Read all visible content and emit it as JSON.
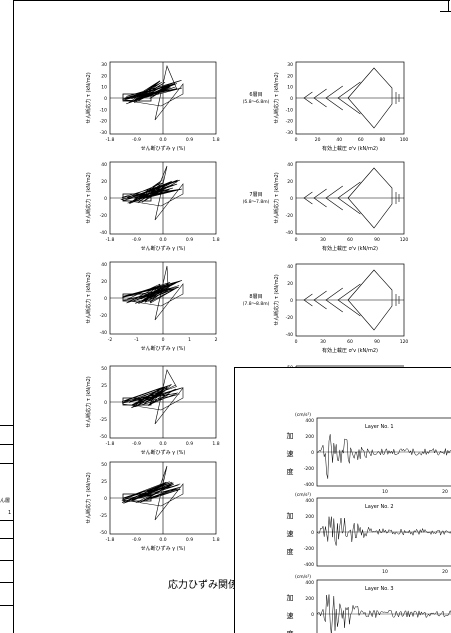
{
  "page": {
    "caption": "応力ひずみ関係",
    "side_tabs": [
      "ん層",
      "1"
    ]
  },
  "plots": {
    "left": {
      "ylabel": "せん断応力 τ (kN/m2)",
      "xlabel": "せん断ひずみ γ (%)",
      "panels": [
        {
          "yticks": [
            "30",
            "20",
            "10",
            "0",
            "-10",
            "-20",
            "-30"
          ],
          "xticks": [
            "-1.8",
            "-0.9",
            "0.0",
            "0.9",
            "1.8"
          ]
        },
        {
          "yticks": [
            "40",
            "20",
            "0",
            "-20",
            "-40"
          ],
          "xticks": [
            "-1.8",
            "-0.9",
            "0.0",
            "0.9",
            "1.8"
          ]
        },
        {
          "yticks": [
            "40",
            "20",
            "0",
            "-20",
            "-40"
          ],
          "xticks": [
            "-2",
            "-1",
            "0",
            "1",
            "2"
          ]
        },
        {
          "yticks": [
            "50",
            "25",
            "0",
            "-25",
            "-50"
          ],
          "xticks": [
            "-1.8",
            "-0.9",
            "0.0",
            "0.9",
            "1.8"
          ]
        },
        {
          "yticks": [
            "50",
            "25",
            "0",
            "-25",
            "-50"
          ],
          "xticks": [
            "-1.8",
            "-0.9",
            "0.0",
            "0.9",
            "1.8"
          ]
        }
      ]
    },
    "right": {
      "ylabel": "せん断応力 τ (kN/m2)",
      "xlabel": "有効上載圧 σ'v (kN/m2)",
      "panels": [
        {
          "layer": "6層目",
          "depth": "(5.8〜6.8m)",
          "yticks": [
            "30",
            "20",
            "10",
            "0",
            "-10",
            "-20",
            "-30"
          ],
          "xticks": [
            "0",
            "20",
            "40",
            "60",
            "80",
            "100"
          ]
        },
        {
          "layer": "7層目",
          "depth": "(6.8〜7.8m)",
          "yticks": [
            "40",
            "20",
            "0",
            "-20",
            "-40"
          ],
          "xticks": [
            "0",
            "30",
            "60",
            "90",
            "120"
          ]
        },
        {
          "layer": "8層目",
          "depth": "(7.8〜8.8m)",
          "yticks": [
            "40",
            "20",
            "0",
            "-20",
            "-40"
          ],
          "xticks": [
            "0",
            "30",
            "60",
            "90",
            "120"
          ]
        },
        {
          "layer": "",
          "depth": "",
          "yticks": [
            "50"
          ],
          "xticks": []
        }
      ]
    }
  },
  "accel": {
    "unit": "(cm/s²)",
    "side_label": [
      "加",
      "速",
      "度"
    ],
    "panels": [
      {
        "title": "Layer No. 1",
        "yticks": [
          "400",
          "200",
          "0",
          "-200",
          "-400"
        ],
        "xticks": [
          "10",
          "20"
        ]
      },
      {
        "title": "Layer No. 2",
        "yticks": [
          "400",
          "200",
          "0",
          "-200",
          "-400"
        ],
        "xticks": [
          "10",
          "20"
        ]
      },
      {
        "title": "Layer No. 3",
        "yticks": [
          "400",
          "200",
          "0"
        ],
        "xticks": []
      }
    ]
  }
}
